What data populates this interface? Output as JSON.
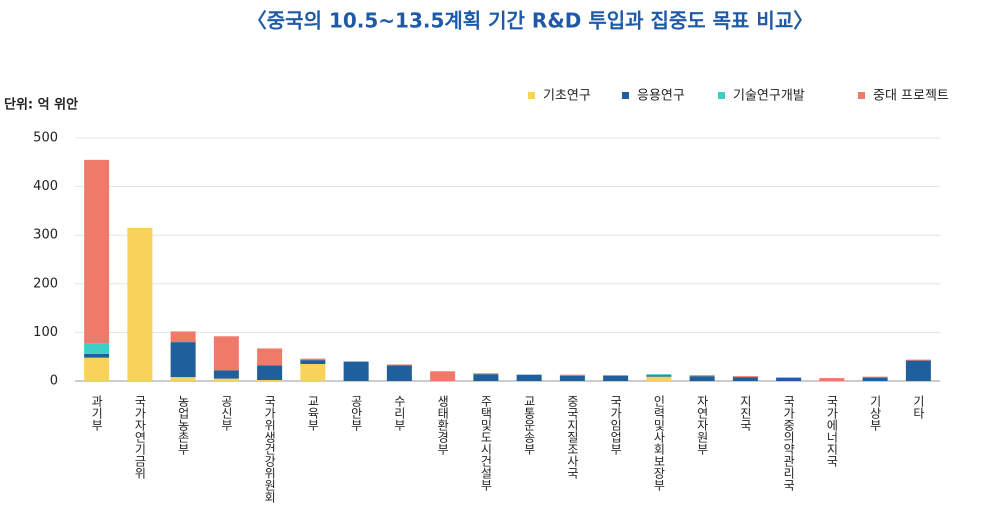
{
  "chart_data": {
    "type": "stacked_bar",
    "title": "〈중국의 10.5~13.5계획 기간 R&D 투입과 집중도 목표 비교〉",
    "unit_label": "단위: 억 위안",
    "categories": [
      "과기부",
      "국가자연기금위",
      "농업농촌부",
      "공신부",
      "국가위생건강위원회",
      "교육부",
      "공안부",
      "수리부",
      "생태환경부",
      "주택및도시건설부",
      "교통운송부",
      "중국지질조사국",
      "국가임업부",
      "인력및사회보장부",
      "자연자원부",
      "지진국",
      "국가중의약관리국",
      "국가에너지국",
      "기상부",
      "기타"
    ],
    "series": [
      {
        "name": "기초연구",
        "color": "#f7d35c",
        "values": [
          48,
          315,
          8,
          5,
          2,
          35,
          0,
          0,
          0,
          0,
          0,
          0,
          0,
          9,
          0,
          0,
          0,
          0,
          0,
          0
        ]
      },
      {
        "name": "응용연구",
        "color": "#1f5f9b",
        "values": [
          8,
          0,
          72,
          17,
          30,
          8,
          40,
          32,
          0,
          14,
          13,
          11,
          11,
          3,
          10,
          8,
          7,
          0,
          7,
          42
        ]
      },
      {
        "name": "기술연구개발",
        "color": "#3ecfc4",
        "values": [
          22,
          0,
          0,
          0,
          0,
          0,
          0,
          0,
          0,
          0,
          0,
          0,
          0,
          2,
          0,
          0,
          0,
          0,
          0,
          0
        ]
      },
      {
        "name": "중대 프로젝트",
        "color": "#f07a6a",
        "values": [
          377,
          0,
          22,
          70,
          35,
          3,
          0,
          2,
          20,
          2,
          0,
          2,
          1,
          0,
          2,
          2,
          0,
          6,
          2,
          2
        ]
      }
    ],
    "ylim": [
      0,
      500
    ],
    "yticks": [
      0,
      100,
      200,
      300,
      400,
      500
    ],
    "grid": true,
    "legend": "top-right"
  }
}
